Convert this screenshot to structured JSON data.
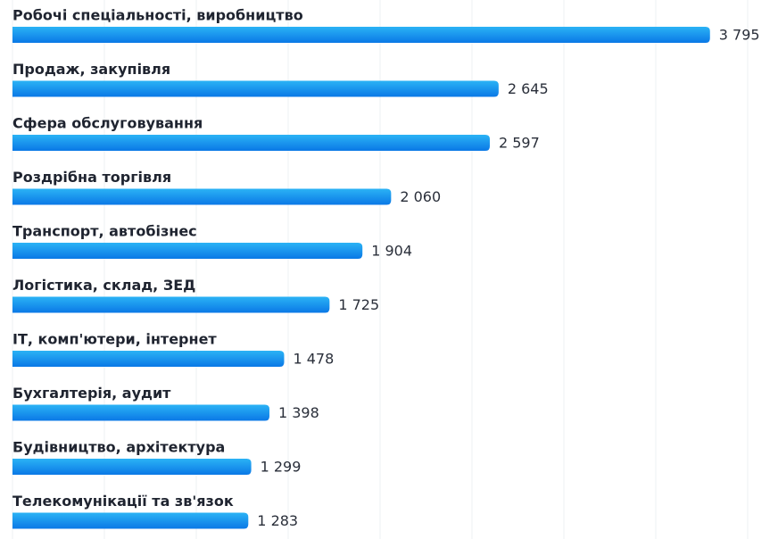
{
  "chart_data": {
    "type": "bar",
    "orientation": "horizontal",
    "categories": [
      "Робочі спеціальності, виробництво",
      "Продаж, закупівля",
      "Сфера обслуговування",
      "Роздрібна торгівля",
      "Транспорт, автобізнес",
      "Логістика, склад, ЗЕД",
      "ІТ, комп'ютери, інтернет",
      "Бухгалтерія, аудит",
      "Будівництво, архітектура",
      "Телекомунікації та зв'язок"
    ],
    "values": [
      3795,
      2645,
      2597,
      2060,
      1904,
      1725,
      1478,
      1398,
      1299,
      1283
    ],
    "value_labels": [
      "3 795",
      "2 645",
      "2 597",
      "2 060",
      "1 904",
      "1 725",
      "1 478",
      "1 398",
      "1 299",
      "1 283"
    ],
    "color": "#0a78e6",
    "xlim": [
      0,
      4000
    ],
    "xticks": [
      0,
      500,
      1000,
      1500,
      2000,
      2500,
      3000,
      3500,
      4000
    ],
    "grid": true
  }
}
